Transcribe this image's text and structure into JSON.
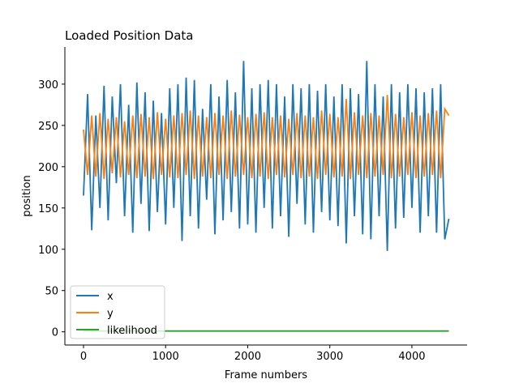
{
  "chart_data": {
    "type": "line",
    "title": "Loaded Position Data",
    "xlabel": "Frame numbers",
    "ylabel": "position",
    "x": [
      0,
      50,
      100,
      150,
      200,
      250,
      300,
      350,
      400,
      450,
      500,
      550,
      600,
      650,
      700,
      750,
      800,
      850,
      900,
      950,
      1000,
      1050,
      1100,
      1150,
      1200,
      1250,
      1300,
      1350,
      1400,
      1450,
      1500,
      1550,
      1600,
      1650,
      1700,
      1750,
      1800,
      1850,
      1900,
      1950,
      2000,
      2050,
      2100,
      2150,
      2200,
      2250,
      2300,
      2350,
      2400,
      2450,
      2500,
      2550,
      2600,
      2650,
      2700,
      2750,
      2800,
      2850,
      2900,
      2950,
      3000,
      3050,
      3100,
      3150,
      3200,
      3250,
      3300,
      3350,
      3400,
      3450,
      3500,
      3550,
      3600,
      3650,
      3700,
      3750,
      3800,
      3850,
      3900,
      3950,
      4000,
      4050,
      4100,
      4150,
      4200,
      4250,
      4300,
      4350,
      4400,
      4450
    ],
    "series": [
      {
        "name": "x",
        "color": "#1f77b4",
        "values": [
          165,
          288,
          123,
          262,
          150,
          298,
          135,
          285,
          180,
          300,
          140,
          275,
          120,
          302,
          155,
          290,
          122,
          280,
          145,
          265,
          130,
          295,
          150,
          300,
          110,
          308,
          140,
          305,
          125,
          270,
          160,
          300,
          118,
          285,
          135,
          305,
          145,
          290,
          125,
          328,
          130,
          295,
          120,
          300,
          150,
          305,
          125,
          300,
          140,
          285,
          115,
          300,
          155,
          295,
          130,
          300,
          120,
          292,
          145,
          300,
          135,
          285,
          128,
          300,
          107,
          295,
          140,
          288,
          118,
          328,
          112,
          300,
          140,
          285,
          98,
          300,
          125,
          290,
          138,
          300,
          150,
          295,
          120,
          290,
          140,
          295,
          120,
          300,
          112,
          137
        ]
      },
      {
        "name": "y",
        "color": "#ff7f0e",
        "values": [
          245,
          190,
          262,
          188,
          265,
          185,
          258,
          192,
          260,
          187,
          255,
          190,
          262,
          186,
          264,
          188,
          260,
          185,
          266,
          190,
          258,
          187,
          262,
          186,
          265,
          190,
          268,
          185,
          262,
          188,
          260,
          186,
          265,
          190,
          262,
          185,
          268,
          188,
          263,
          190,
          260,
          186,
          264,
          188,
          266,
          185,
          260,
          190,
          262,
          187,
          258,
          190,
          265,
          186,
          262,
          188,
          260,
          185,
          268,
          190,
          264,
          187,
          260,
          188,
          282,
          185,
          266,
          190,
          262,
          186,
          265,
          188,
          262,
          190,
          287,
          186,
          264,
          188,
          260,
          190,
          266,
          186,
          262,
          188,
          265,
          190,
          268,
          186,
          270,
          262
        ]
      },
      {
        "name": "likelihood",
        "color": "#2ca02c",
        "values": [
          1,
          1,
          1,
          1,
          1,
          1,
          1,
          1,
          1,
          1,
          1,
          1,
          1,
          1,
          1,
          1,
          1,
          1,
          1,
          1,
          1,
          1,
          1,
          1,
          1,
          1,
          1,
          1,
          1,
          1,
          1,
          1,
          1,
          1,
          1,
          1,
          1,
          1,
          1,
          1,
          1,
          1,
          1,
          1,
          1,
          1,
          1,
          1,
          1,
          1,
          1,
          1,
          1,
          1,
          1,
          1,
          1,
          1,
          1,
          1,
          1,
          1,
          1,
          1,
          1,
          1,
          1,
          1,
          1,
          1,
          1,
          1,
          1,
          1,
          1,
          1,
          1,
          1,
          1,
          1,
          1,
          1,
          1,
          1,
          1,
          1,
          1,
          1,
          1,
          1
        ]
      }
    ],
    "xlim": [
      -227,
      4672
    ],
    "ylim": [
      -16,
      345
    ],
    "xticks": [
      0,
      1000,
      2000,
      3000,
      4000
    ],
    "yticks": [
      0,
      50,
      100,
      150,
      200,
      250,
      300
    ],
    "legend": "lower left"
  }
}
